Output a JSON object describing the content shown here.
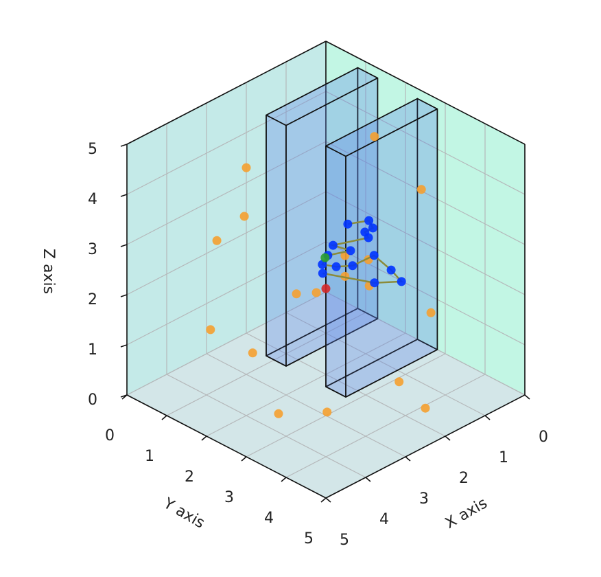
{
  "chart_data": {
    "type": "scatter3d",
    "xlabel": "X axis",
    "ylabel": "Y axis",
    "zlabel": "Z axis",
    "xlim": [
      0,
      5
    ],
    "ylim": [
      0,
      5
    ],
    "zlim": [
      0,
      5
    ],
    "xticks": [
      0,
      1,
      2,
      3,
      4,
      5
    ],
    "yticks": [
      0,
      1,
      2,
      3,
      4,
      5
    ],
    "zticks": [
      0,
      1,
      2,
      3,
      4,
      5
    ],
    "grid": true,
    "box_color": "#5b82e8",
    "boxes": [
      {
        "x": [
          0,
          2.3
        ],
        "y": [
          0.8,
          1.3
        ],
        "z": [
          0,
          4.8
        ]
      },
      {
        "x": [
          0,
          2.3
        ],
        "y": [
          2.3,
          2.8
        ],
        "z": [
          0,
          4.8
        ]
      }
    ],
    "series": [
      {
        "color": "#f5a030",
        "x": [
          2,
          2.05,
          2.74,
          2.9,
          2.4,
          3.55,
          2.9,
          1.26,
          1.57,
          0,
          0,
          0,
          2.85,
          2.57,
          1.92,
          2.06,
          1.6,
          1.74
        ],
        "y": [
          0,
          0,
          0,
          0,
          0.56,
          2.36,
          2.93,
          3.1,
          4.07,
          2.64,
          2.4,
          1.22,
          2.11,
          2.33,
          2.4,
          2.54,
          2.67,
          2.83
        ],
        "z": [
          3.3,
          2.35,
          2.15,
          0.44,
          0,
          0,
          0,
          0,
          0,
          0.67,
          3.03,
          3.6,
          2,
          2,
          2.5,
          2.2,
          2.4,
          2
        ]
      },
      {
        "color": "#0033ff",
        "line_color": "#8b8b3a",
        "x": [
          1.12,
          0.77,
          0.9,
          1.1,
          1.19,
          1.82,
          1.73,
          2.13,
          2.42,
          2.3,
          2.07,
          1.55,
          1.69,
          1.84,
          2.21,
          2.63
        ],
        "y": [
          1.67,
          1.85,
          2.08,
          2.08,
          2.26,
          2.0,
          2.35,
          2.18,
          2.33,
          2.56,
          2.74,
          2.76,
          3.33,
          3.74,
          3.43,
          2.55
        ],
        "z": [
          2.5,
          2.5,
          2.5,
          2.5,
          2.5,
          2.5,
          2.5,
          2.5,
          2.5,
          2.5,
          2.5,
          2.5,
          2.5,
          2.5,
          2.5,
          2.5
        ]
      },
      {
        "color": "#2ca02c",
        "x": [
          2.22
        ],
        "y": [
          2.2
        ],
        "z": [
          2.5
        ]
      },
      {
        "color": "#d62728",
        "x": [
          2.96
        ],
        "y": [
          2.96
        ],
        "z": [
          2.5
        ]
      }
    ]
  }
}
